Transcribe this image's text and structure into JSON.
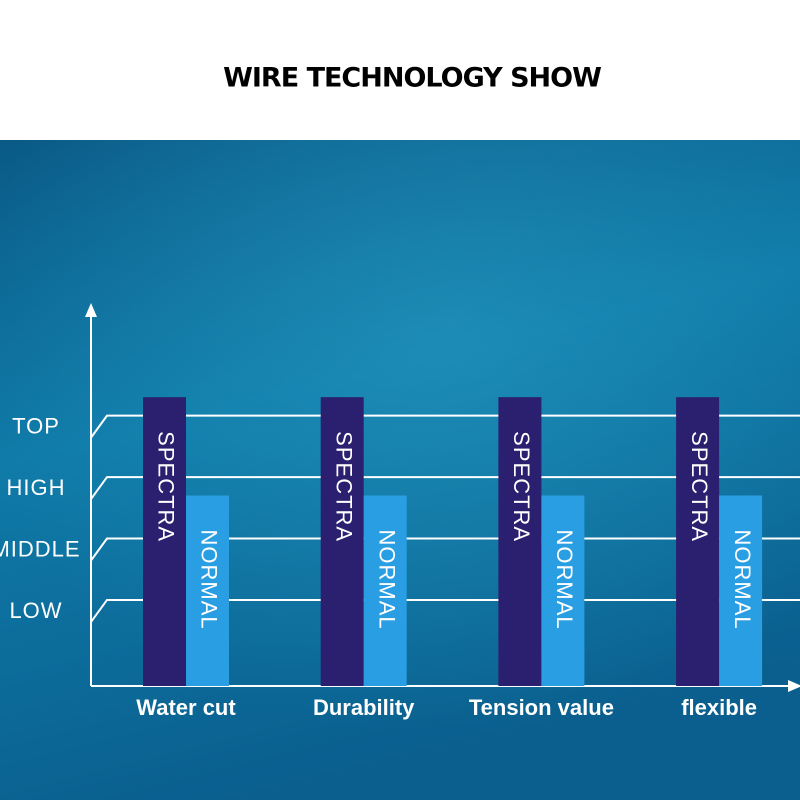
{
  "chart_data": {
    "type": "bar",
    "title": "WIRE TECHNOLOGY SHOW",
    "categories": [
      "Water cut",
      "Durability",
      "Tension value",
      "flexible"
    ],
    "series": [
      {
        "name": "SPECTRA",
        "color": "#2b1f6f",
        "values": [
          4.3,
          4.3,
          4.3,
          4.3
        ]
      },
      {
        "name": "NORMAL",
        "color": "#2a9ee3",
        "values": [
          2.7,
          2.7,
          2.7,
          2.7
        ]
      }
    ],
    "ylim": [
      -0.4,
      5.8
    ],
    "yticks": [
      {
        "value": 1,
        "label": "LOW"
      },
      {
        "value": 2,
        "label": "MIDDLE"
      },
      {
        "value": 3,
        "label": "HIGH"
      },
      {
        "value": 4,
        "label": "TOP"
      }
    ],
    "grid": true
  }
}
